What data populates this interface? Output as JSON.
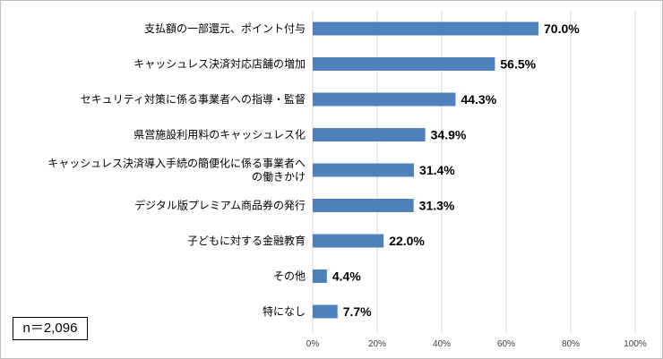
{
  "chart_data": {
    "type": "bar",
    "orientation": "horizontal",
    "categories": [
      "支払額の一部還元、ポイント付与",
      "キャッシュレス決済対応店舗の増加",
      "セキュリティ対策に係る事業者への指導・監督",
      "県営施設利用料のキャッシュレス化",
      "キャッシュレス決済導入手続の簡便化に係る事業者への働きかけ",
      "デジタル版プレミアム商品券の発行",
      "子どもに対する金融教育",
      "その他",
      "特になし"
    ],
    "category_lines": [
      [
        "支払額の一部還元、ポイント付与"
      ],
      [
        "キャッシュレス決済対応店舗の増加"
      ],
      [
        "セキュリティ対策に係る事業者への指導・監督"
      ],
      [
        "県営施設利用料のキャッシュレス化"
      ],
      [
        "キャッシュレス決済導入手続の簡便化に係る事業者へ",
        "の働きかけ"
      ],
      [
        "デジタル版プレミアム商品券の発行"
      ],
      [
        "子どもに対する金融教育"
      ],
      [
        "その他"
      ],
      [
        "特になし"
      ]
    ],
    "values": [
      70.0,
      56.5,
      44.3,
      34.9,
      31.4,
      31.3,
      22.0,
      4.4,
      7.7
    ],
    "value_labels": [
      "70.0%",
      "56.5%",
      "44.3%",
      "34.9%",
      "31.4%",
      "31.3%",
      "22.0%",
      "4.4%",
      "7.7%"
    ],
    "xlim": [
      0,
      100
    ],
    "ticks": [
      0,
      20,
      40,
      60,
      80,
      100
    ],
    "tick_labels": [
      "0%",
      "20%",
      "40%",
      "60%",
      "80%",
      "100%"
    ],
    "grid": true,
    "bar_color": "#4f81bd",
    "gridline_color": "#d9d9d9"
  },
  "sample_note": "n＝2,096"
}
